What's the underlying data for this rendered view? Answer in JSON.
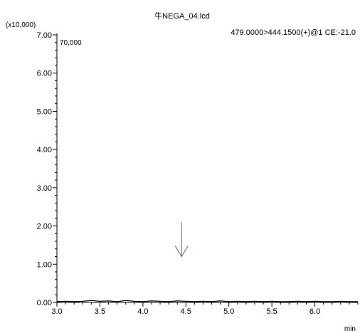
{
  "chart_data": {
    "type": "line",
    "title": "牛NEGA_04.lcd",
    "subtitle": "479.0000>444.1500(+)@1 CE:-21.0",
    "intensity_label": "70,000",
    "ylabel": "(x10,000)",
    "xlabel": "min",
    "xlim": [
      3.0,
      6.5
    ],
    "ylim": [
      0,
      7.0
    ],
    "x_ticks": [
      3.0,
      3.5,
      4.0,
      4.5,
      5.0,
      5.5,
      6.0
    ],
    "x_tick_labels": [
      "3.0",
      "3.5",
      "4.0",
      "4.5",
      "5.0",
      "5.5",
      "6.0"
    ],
    "y_ticks": [
      0,
      1,
      2,
      3,
      4,
      5,
      6,
      7
    ],
    "y_tick_labels": [
      "0.00",
      "1.00",
      "2.00",
      "3.00",
      "4.00",
      "5.00",
      "6.00",
      "7.00"
    ],
    "grid": false,
    "series": [
      {
        "color": "#000000",
        "x": [
          3.0,
          3.1,
          3.2,
          3.3,
          3.4,
          3.5,
          3.6,
          3.7,
          3.8,
          3.9,
          4.0,
          4.1,
          4.2,
          4.3,
          4.4,
          4.5,
          4.6,
          4.7,
          4.8,
          4.9,
          5.0,
          5.1,
          5.2,
          5.3,
          5.4,
          5.5,
          5.6,
          5.7,
          5.8,
          5.9,
          6.0,
          6.1,
          6.2,
          6.3,
          6.4,
          6.5
        ],
        "y": [
          0.02,
          0.03,
          0.02,
          0.03,
          0.05,
          0.03,
          0.04,
          0.02,
          0.05,
          0.03,
          0.02,
          0.04,
          0.03,
          0.02,
          0.04,
          0.03,
          0.02,
          0.03,
          0.02,
          0.04,
          0.02,
          0.03,
          0.02,
          0.03,
          0.02,
          0.03,
          0.02,
          0.02,
          0.03,
          0.02,
          0.03,
          0.02,
          0.02,
          0.03,
          0.02,
          0.02
        ]
      }
    ],
    "annotations": [
      {
        "type": "arrow",
        "x": 4.45,
        "y_from": 2.1,
        "y_to": 1.2
      }
    ]
  }
}
